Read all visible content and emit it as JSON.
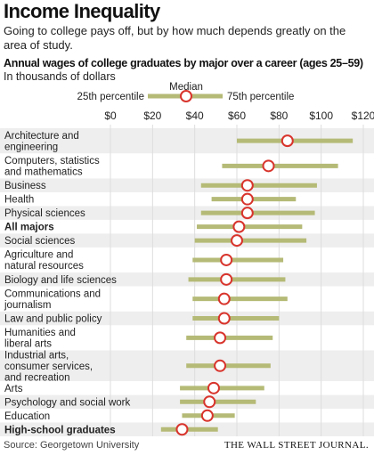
{
  "header": {
    "title": "Income Inequality",
    "subtitle": "Going to college pays off, but by how much depends greatly on the area of study.",
    "chart_title": "Annual wages of college graduates by major over a career (ages 25–59)",
    "units": "In thousands of dollars"
  },
  "legend": {
    "p25_label": "25th percentile",
    "median_label": "Median",
    "p75_label": "75th percentile"
  },
  "footer": {
    "source": "Source: Georgetown University",
    "brand": "THE WALL STREET JOURNAL."
  },
  "colors": {
    "range_bar": "#b5ba76",
    "median_fill": "#ffffff",
    "median_stroke": "#d8342c",
    "row_stripe": "#eeeeee",
    "gridline": "#dddddd"
  },
  "chart_data": {
    "type": "range-dot",
    "xlim": [
      0,
      120
    ],
    "ticks": [
      "$0",
      "$20",
      "$40",
      "$60",
      "$80",
      "$100",
      "$120"
    ],
    "tick_values": [
      0,
      20,
      40,
      60,
      80,
      100,
      120
    ],
    "rows": [
      {
        "label": "Architecture and engineering",
        "p25": 60,
        "median": 84,
        "p75": 115,
        "bold": false
      },
      {
        "label": "Computers, statistics and mathematics",
        "p25": 53,
        "median": 75,
        "p75": 108,
        "bold": false
      },
      {
        "label": "Business",
        "p25": 43,
        "median": 65,
        "p75": 98,
        "bold": false
      },
      {
        "label": "Health",
        "p25": 48,
        "median": 65,
        "p75": 88,
        "bold": false
      },
      {
        "label": "Physical sciences",
        "p25": 43,
        "median": 65,
        "p75": 97,
        "bold": false
      },
      {
        "label": "All majors",
        "p25": 41,
        "median": 61,
        "p75": 91,
        "bold": true
      },
      {
        "label": "Social sciences",
        "p25": 40,
        "median": 60,
        "p75": 93,
        "bold": false
      },
      {
        "label": "Agriculture and natural resources",
        "p25": 39,
        "median": 55,
        "p75": 82,
        "bold": false
      },
      {
        "label": "Biology and life sciences",
        "p25": 37,
        "median": 55,
        "p75": 83,
        "bold": false
      },
      {
        "label": "Communications and journalism",
        "p25": 39,
        "median": 54,
        "p75": 84,
        "bold": false
      },
      {
        "label": "Law and public policy",
        "p25": 39,
        "median": 54,
        "p75": 80,
        "bold": false
      },
      {
        "label": "Humanities and liberal arts",
        "p25": 36,
        "median": 52,
        "p75": 77,
        "bold": false
      },
      {
        "label": "Industrial arts, consumer services, and recreation",
        "p25": 36,
        "median": 52,
        "p75": 76,
        "bold": false
      },
      {
        "label": "Arts",
        "p25": 33,
        "median": 49,
        "p75": 73,
        "bold": false
      },
      {
        "label": "Psychology and social work",
        "p25": 33,
        "median": 47,
        "p75": 69,
        "bold": false
      },
      {
        "label": "Education",
        "p25": 34,
        "median": 46,
        "p75": 59,
        "bold": false
      },
      {
        "label": "High-school graduates",
        "p25": 24,
        "median": 34,
        "p75": 51,
        "bold": true
      }
    ]
  }
}
